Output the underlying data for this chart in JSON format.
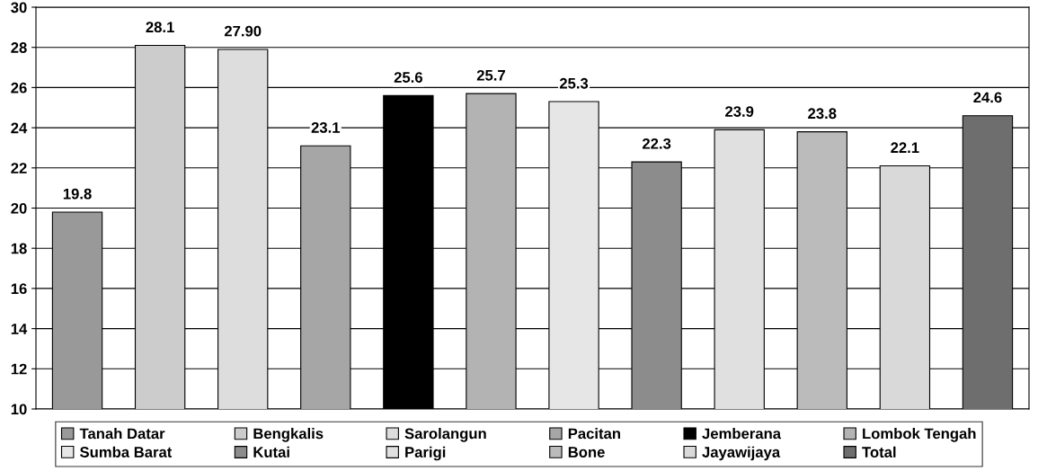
{
  "chart_data": {
    "type": "bar",
    "categories": [
      null,
      null,
      null,
      null,
      null,
      null,
      null,
      null,
      null,
      null,
      null,
      null
    ],
    "series": [
      {
        "name": "Tanah Datar",
        "color": "#999999",
        "values": [
          19.8,
          null,
          null,
          null,
          null,
          null,
          null,
          null,
          null,
          null,
          null,
          null
        ],
        "value_labels": [
          "19.8",
          null,
          null,
          null,
          null,
          null,
          null,
          null,
          null,
          null,
          null,
          null
        ]
      },
      {
        "name": "Bengkalis",
        "color": "#cccccc",
        "values": [
          null,
          28.1,
          null,
          null,
          null,
          null,
          null,
          null,
          null,
          null,
          null,
          null
        ],
        "value_labels": [
          null,
          "28.1",
          null,
          null,
          null,
          null,
          null,
          null,
          null,
          null,
          null,
          null
        ]
      },
      {
        "name": "Sarolangun",
        "color": "#dddddd",
        "values": [
          null,
          null,
          27.9,
          null,
          null,
          null,
          null,
          null,
          null,
          null,
          null,
          null
        ],
        "value_labels": [
          null,
          null,
          "27.90",
          null,
          null,
          null,
          null,
          null,
          null,
          null,
          null,
          null
        ]
      },
      {
        "name": "Pacitan",
        "color": "#a6a6a6",
        "values": [
          null,
          null,
          null,
          23.1,
          null,
          null,
          null,
          null,
          null,
          null,
          null,
          null
        ],
        "value_labels": [
          null,
          null,
          null,
          "23.1",
          null,
          null,
          null,
          null,
          null,
          null,
          null,
          null
        ]
      },
      {
        "name": "Jemberana",
        "color": "#000000",
        "values": [
          null,
          null,
          null,
          null,
          25.6,
          null,
          null,
          null,
          null,
          null,
          null,
          null
        ],
        "value_labels": [
          null,
          null,
          null,
          null,
          "25.6",
          null,
          null,
          null,
          null,
          null,
          null,
          null
        ]
      },
      {
        "name": "Lombok Tengah",
        "color": "#b3b3b3",
        "values": [
          null,
          null,
          null,
          null,
          null,
          25.7,
          null,
          null,
          null,
          null,
          null,
          null
        ],
        "value_labels": [
          null,
          null,
          null,
          null,
          null,
          "25.7",
          null,
          null,
          null,
          null,
          null,
          null
        ]
      },
      {
        "name": "Sumba Barat",
        "color": "#e6e6e6",
        "values": [
          null,
          null,
          null,
          null,
          null,
          null,
          25.3,
          null,
          null,
          null,
          null,
          null
        ],
        "value_labels": [
          null,
          null,
          null,
          null,
          null,
          null,
          "25.3",
          null,
          null,
          null,
          null,
          null
        ]
      },
      {
        "name": "Kutai",
        "color": "#8c8c8c",
        "values": [
          null,
          null,
          null,
          null,
          null,
          null,
          null,
          22.3,
          null,
          null,
          null,
          null
        ],
        "value_labels": [
          null,
          null,
          null,
          null,
          null,
          null,
          null,
          "22.3",
          null,
          null,
          null,
          null
        ]
      },
      {
        "name": "Parigi",
        "color": "#e0e0e0",
        "values": [
          null,
          null,
          null,
          null,
          null,
          null,
          null,
          null,
          23.9,
          null,
          null,
          null
        ],
        "value_labels": [
          null,
          null,
          null,
          null,
          null,
          null,
          null,
          null,
          "23.9",
          null,
          null,
          null
        ]
      },
      {
        "name": "Bone",
        "color": "#bbbbbb",
        "values": [
          null,
          null,
          null,
          null,
          null,
          null,
          null,
          null,
          null,
          23.8,
          null,
          null
        ],
        "value_labels": [
          null,
          null,
          null,
          null,
          null,
          null,
          null,
          null,
          null,
          "23.8",
          null,
          null
        ]
      },
      {
        "name": "Jayawijaya",
        "color": "#d9d9d9",
        "values": [
          null,
          null,
          null,
          null,
          null,
          null,
          null,
          null,
          null,
          null,
          22.1,
          null
        ],
        "value_labels": [
          null,
          null,
          null,
          null,
          null,
          null,
          null,
          null,
          null,
          null,
          "22.1",
          null
        ]
      },
      {
        "name": "Total",
        "color": "#6e6e6e",
        "values": [
          null,
          null,
          null,
          null,
          null,
          null,
          null,
          null,
          null,
          null,
          null,
          24.6
        ],
        "value_labels": [
          null,
          null,
          null,
          null,
          null,
          null,
          null,
          null,
          null,
          null,
          null,
          "24.6"
        ]
      }
    ],
    "ylim": [
      10,
      30
    ],
    "yticks": [
      10,
      12,
      14,
      16,
      18,
      20,
      22,
      24,
      26,
      28,
      30
    ],
    "grid": "y",
    "legend": "bottom",
    "tick_labels": "y"
  }
}
